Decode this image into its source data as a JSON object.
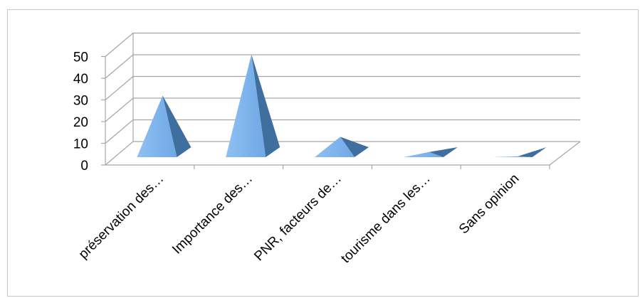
{
  "chart_data": {
    "type": "bar",
    "shape": "3d-pyramid",
    "title": "",
    "xlabel": "",
    "ylabel": "",
    "categories": [
      "préservation des…",
      "Importance des…",
      "PNR, facteurs de…",
      "tourisme dans les…",
      "Sans opinion"
    ],
    "values": [
      32,
      51,
      13,
      6,
      4
    ],
    "ylim": [
      0,
      50
    ],
    "yticks": [
      0,
      10,
      20,
      30,
      40,
      50
    ],
    "grid": true,
    "legend": "none",
    "colors": {
      "face": "#6fa8e6",
      "face_light": "#8fc0f2",
      "side": "#3f6f9e",
      "grid": "#a6a6a6"
    }
  }
}
